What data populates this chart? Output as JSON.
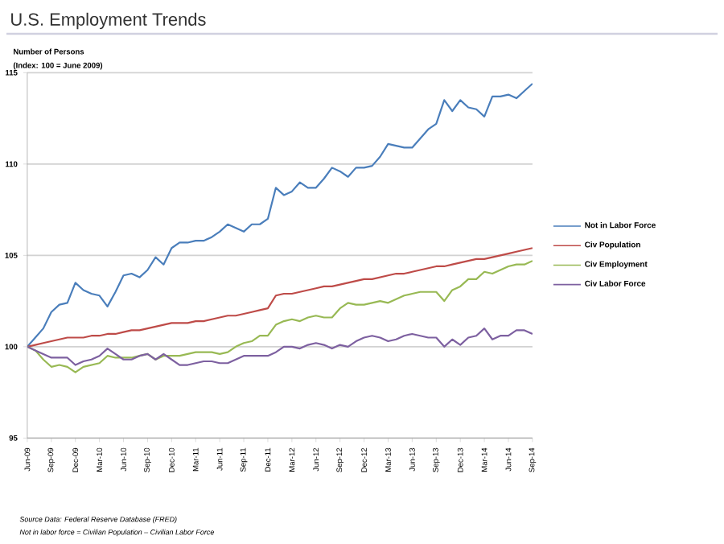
{
  "chart_data": {
    "type": "line",
    "title": "U.S. Employment Trends",
    "subtitle": "(Index:  100 = June 2009)",
    "ylabel": "Number of Persons",
    "categories": [
      "Jun-09",
      null,
      null,
      "Sep-09",
      null,
      null,
      "Dec-09",
      null,
      null,
      "Mar-10",
      null,
      null,
      "Jun-10",
      null,
      null,
      "Sep-10",
      null,
      null,
      "Dec-10",
      null,
      null,
      "Mar-11",
      null,
      null,
      "Jun-11",
      null,
      null,
      "Sep-11",
      null,
      null,
      "Dec-11",
      null,
      null,
      "Mar-12",
      null,
      null,
      "Jun-12",
      null,
      null,
      "Sep-12",
      null,
      null,
      "Dec-12",
      null,
      null,
      "Mar-13",
      null,
      null,
      "Jun-13",
      null,
      null,
      "Sep-13",
      null,
      null,
      "Dec-13",
      null,
      null,
      "Mar-14",
      null,
      null,
      "Jun-14",
      null,
      null,
      "Sep-14"
    ],
    "series": [
      {
        "name": "Not in Labor Force",
        "color": "#4a7ebb",
        "values": [
          100.0,
          100.5,
          101.0,
          101.9,
          102.3,
          102.4,
          103.5,
          103.1,
          102.9,
          102.8,
          102.2,
          103.0,
          103.9,
          104.0,
          103.8,
          104.2,
          104.9,
          104.5,
          105.4,
          105.7,
          105.7,
          105.8,
          105.8,
          106.0,
          106.3,
          106.7,
          106.5,
          106.3,
          106.7,
          106.7,
          107.0,
          108.7,
          108.3,
          108.5,
          109.0,
          108.7,
          108.7,
          109.2,
          109.8,
          109.6,
          109.3,
          109.8,
          109.8,
          109.9,
          110.4,
          111.1,
          111.0,
          110.9,
          110.9,
          111.4,
          111.9,
          112.2,
          113.5,
          112.9,
          113.5,
          113.1,
          113.0,
          112.6,
          113.7,
          113.7,
          113.8,
          113.6,
          114.0,
          114.4
        ]
      },
      {
        "name": "Civ Population",
        "color": "#be4b48",
        "values": [
          100.0,
          100.1,
          100.2,
          100.3,
          100.4,
          100.5,
          100.5,
          100.5,
          100.6,
          100.6,
          100.7,
          100.7,
          100.8,
          100.9,
          100.9,
          101.0,
          101.1,
          101.2,
          101.3,
          101.3,
          101.3,
          101.4,
          101.4,
          101.5,
          101.6,
          101.7,
          101.7,
          101.8,
          101.9,
          102.0,
          102.1,
          102.8,
          102.9,
          102.9,
          103.0,
          103.1,
          103.2,
          103.3,
          103.3,
          103.4,
          103.5,
          103.6,
          103.7,
          103.7,
          103.8,
          103.9,
          104.0,
          104.0,
          104.1,
          104.2,
          104.3,
          104.4,
          104.4,
          104.5,
          104.6,
          104.7,
          104.8,
          104.8,
          104.9,
          105.0,
          105.1,
          105.2,
          105.3,
          105.4
        ]
      },
      {
        "name": "Civ Employment",
        "color": "#98b954",
        "values": [
          100.0,
          99.8,
          99.3,
          98.9,
          99.0,
          98.9,
          98.6,
          98.9,
          99.0,
          99.1,
          99.5,
          99.4,
          99.4,
          99.4,
          99.5,
          99.6,
          99.3,
          99.5,
          99.5,
          99.5,
          99.6,
          99.7,
          99.7,
          99.7,
          99.6,
          99.7,
          100.0,
          100.2,
          100.3,
          100.6,
          100.6,
          101.2,
          101.4,
          101.5,
          101.4,
          101.6,
          101.7,
          101.6,
          101.6,
          102.1,
          102.4,
          102.3,
          102.3,
          102.4,
          102.5,
          102.4,
          102.6,
          102.8,
          102.9,
          103.0,
          103.0,
          103.0,
          102.5,
          103.1,
          103.3,
          103.7,
          103.7,
          104.1,
          104.0,
          104.2,
          104.4,
          104.5,
          104.5,
          104.7
        ]
      },
      {
        "name": "Civ Labor Force",
        "color": "#7d60a0",
        "values": [
          100.0,
          99.8,
          99.6,
          99.4,
          99.4,
          99.4,
          99.0,
          99.2,
          99.3,
          99.5,
          99.9,
          99.6,
          99.3,
          99.3,
          99.5,
          99.6,
          99.3,
          99.6,
          99.3,
          99.0,
          99.0,
          99.1,
          99.2,
          99.2,
          99.1,
          99.1,
          99.3,
          99.5,
          99.5,
          99.5,
          99.5,
          99.7,
          100.0,
          100.0,
          99.9,
          100.1,
          100.2,
          100.1,
          99.9,
          100.1,
          100.0,
          100.3,
          100.5,
          100.6,
          100.5,
          100.3,
          100.4,
          100.6,
          100.7,
          100.6,
          100.5,
          100.5,
          100.0,
          100.4,
          100.1,
          100.5,
          100.6,
          101.0,
          100.4,
          100.6,
          100.6,
          100.9,
          100.9,
          100.7
        ]
      }
    ],
    "ylim": [
      95,
      115
    ],
    "yticks": [
      95,
      100,
      105,
      110,
      115
    ],
    "grid": "y",
    "legend": "right",
    "annotations": [
      "Source Data:  Federal Reserve Database (FRED)",
      "Not in labor force =  Civilian Population – Civilian Labor Force"
    ]
  }
}
